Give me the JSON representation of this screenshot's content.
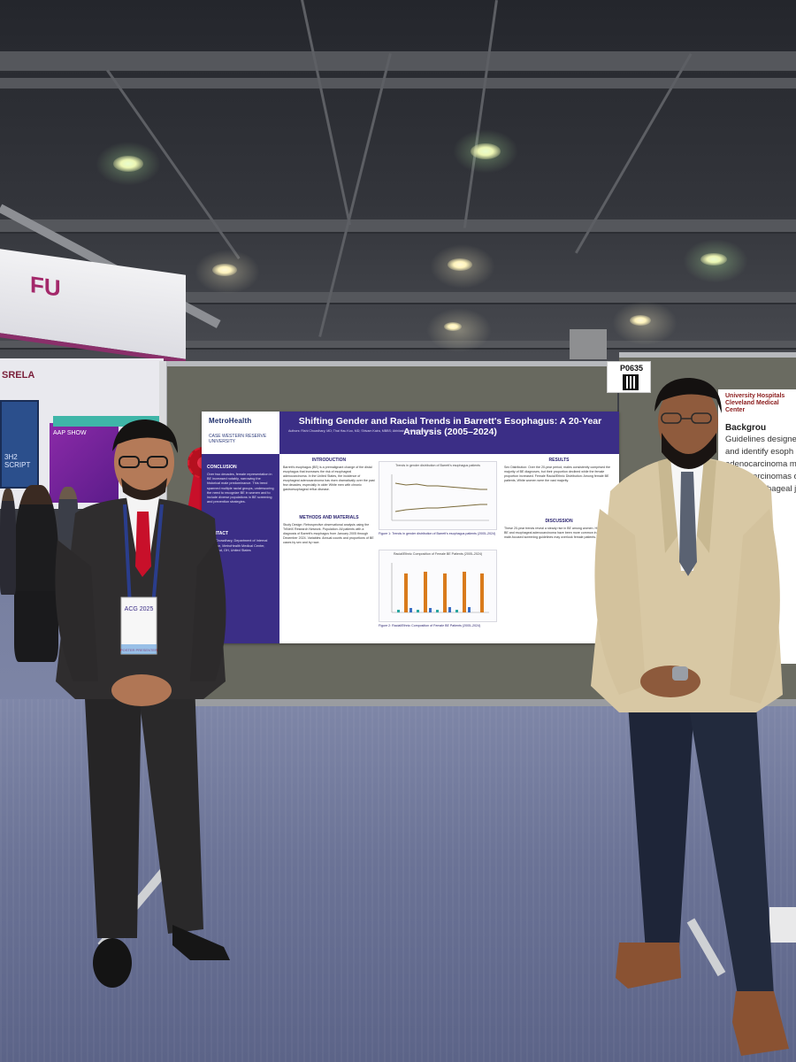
{
  "booth": {
    "banner_text": "FU",
    "sign_text": "SRELA",
    "screen_text": "3H2 SCRIPT",
    "purple_panel_text": "AAP SHOW"
  },
  "poster_tag": {
    "number": "P0635"
  },
  "poster": {
    "logo_primary": "MetroHealth",
    "logo_secondary": "CASE WESTERN RESERVE UNIVERSITY",
    "title": "Shifting Gender and Racial Trends in Barrett's Esophagus: A 20-Year Analysis (2005–2024)",
    "authors": "Authors: Rishi Chowdhary, MD; Thai Hau Koo, MD; Shivam Kalra, MBBS; Abhilash Perisetti, MD, MPH",
    "sections": {
      "conclusion": "CONCLUSION",
      "conclusion_text": "Over two decades, female representation in BE increased notably, narrowing the historical male predominance. This trend spanned multiple racial groups, underscoring the need to recognize BE in women and to include diverse populations in BE screening and prevention strategies.",
      "contact": "CONTACT",
      "contact_text": "Rishi Chowdhary, Department of Internal Medicine, MetroHealth Medical Center, Cleveland, OH, United States",
      "introduction": "INTRODUCTION",
      "introduction_text": "Barrett's esophagus (BE) is a premalignant change of the distal esophagus that increases the risk of esophageal adenocarcinoma. In the United States, the incidence of esophageal adenocarcinoma has risen dramatically over the past few decades, especially in older White men with chronic gastroesophageal reflux disease.",
      "methods": "METHODS AND MATERIALS",
      "methods_text": "Study Design: Retrospective observational analysis using the TriNetX Research Network. Population: All patients with a diagnosis of Barrett's esophagus from January 2005 through December 2024. Variables: Annual counts and proportions of BE cases by sex and by race.",
      "results": "RESULTS",
      "results_text": "Sex Distribution: Over the 20-year period, males consistently comprised the majority of BE diagnoses, but their proportion declined while the female proportion increased. Female Racial/Ethnic Distribution: Among female BE patients, White women were the vast majority.",
      "discussion": "DISCUSSION",
      "discussion_text": "These 20-year trends reveal a steady rise in BE among women. Historically, BE and esophageal adenocarcinoma have been more common in men, and male-focused screening guidelines may overlook female patients."
    },
    "figure1": {
      "title": "Trends in gender distribution of Barrett's esophagus patients",
      "caption": "Figure 1: Trends in gender distribution of Barrett's esophagus patients (2005–2024)"
    },
    "figure2": {
      "title": "Racial/Ethnic Composition of Female BE Patients (2005–2024)",
      "caption": "Figure 2: Racial/Ethnic Composition of Female BE Patients (2005–2024)"
    }
  },
  "right_poster": {
    "logo": "University Hospitals Cleveland Medical Center",
    "heading": "Backgrou",
    "lines": [
      "Guidelines designe",
      "and identify esoph",
      "adenocarcinoma m",
      "adenocarcinomas d",
      "gastroesophageal j"
    ]
  },
  "badge": {
    "event": "ACG 2025",
    "role": "POSTER PRESENTER"
  },
  "colors": {
    "poster_purple": "#3b2e86",
    "carpet": "#6b7396",
    "board": "#68695f",
    "suit_left": "#2f2d2e",
    "blazer_right": "#d8c8a4",
    "tie_left": "#c8102a"
  }
}
